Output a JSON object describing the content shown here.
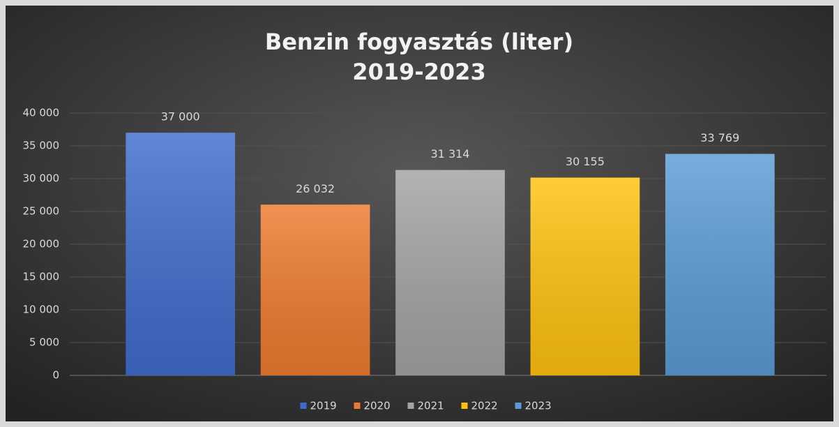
{
  "chart_data": {
    "type": "bar",
    "title": "Benzin fogyasztás (liter)",
    "subtitle": "2019-2023",
    "categories": [
      "2019",
      "2020",
      "2021",
      "2022",
      "2023"
    ],
    "values": [
      37000,
      26032,
      31314,
      30155,
      33769
    ],
    "value_labels": [
      "37 000",
      "26 032",
      "31 314",
      "30 155",
      "33 769"
    ],
    "colors": [
      "#3f6ccc",
      "#ee7a2e",
      "#a3a3a3",
      "#ffc20e",
      "#5b9bd5"
    ],
    "ylim": [
      0,
      40000
    ],
    "yticks": [
      0,
      {
        "value": 5000,
        "label": "5 000"
      },
      {
        "value": 10000,
        "label": "10 000"
      },
      {
        "value": 15000,
        "label": "15 000"
      },
      {
        "value": 20000,
        "label": "20 000"
      },
      {
        "value": 25000,
        "label": "25 000"
      },
      {
        "value": 30000,
        "label": "30 000"
      },
      {
        "value": 35000,
        "label": "35 000"
      },
      {
        "value": 40000,
        "label": "40 000"
      }
    ],
    "grid": true,
    "legend": "bottom"
  }
}
